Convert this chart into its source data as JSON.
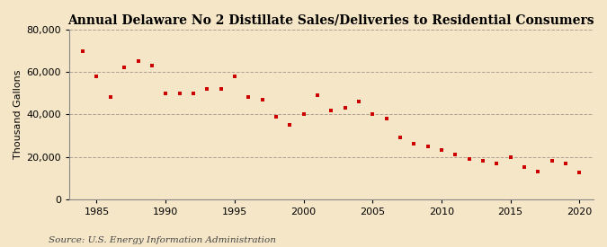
{
  "title": "Annual Delaware No 2 Distillate Sales/Deliveries to Residential Consumers",
  "ylabel": "Thousand Gallons",
  "source": "Source: U.S. Energy Information Administration",
  "background_color": "#f5e6c8",
  "marker_color": "#cc0000",
  "years": [
    1984,
    1985,
    1986,
    1987,
    1988,
    1989,
    1990,
    1991,
    1992,
    1993,
    1994,
    1995,
    1996,
    1997,
    1998,
    1999,
    2000,
    2001,
    2002,
    2003,
    2004,
    2005,
    2006,
    2007,
    2008,
    2009,
    2010,
    2011,
    2012,
    2013,
    2014,
    2015,
    2016,
    2017,
    2018,
    2019,
    2020
  ],
  "values": [
    70000,
    58000,
    48000,
    62000,
    65000,
    63000,
    50000,
    50000,
    50000,
    52000,
    52000,
    58000,
    48000,
    47000,
    39000,
    35000,
    40000,
    49000,
    42000,
    43000,
    46000,
    40000,
    38000,
    29000,
    26000,
    25000,
    23000,
    21000,
    19000,
    18000,
    17000,
    20000,
    15000,
    13000,
    18000,
    17000,
    12500
  ],
  "ylim": [
    0,
    80000
  ],
  "xlim": [
    1983,
    2021
  ],
  "yticks": [
    0,
    20000,
    40000,
    60000,
    80000
  ],
  "xticks": [
    1985,
    1990,
    1995,
    2000,
    2005,
    2010,
    2015,
    2020
  ],
  "grid_color": "#b0a090",
  "title_fontsize": 10,
  "label_fontsize": 8,
  "tick_fontsize": 8,
  "source_fontsize": 7.5
}
